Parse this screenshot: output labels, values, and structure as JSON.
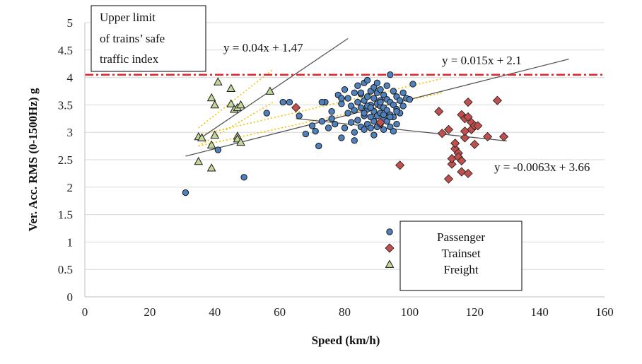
{
  "chart_data": {
    "type": "scatter",
    "title": "",
    "xlabel": "Speed (km/h)",
    "ylabel": "Ver. Acc. RMS  (0-1500Hz) g",
    "xlim": [
      0,
      160
    ],
    "ylim": [
      0,
      5
    ],
    "x_ticks": [
      "0",
      "20",
      "40",
      "60",
      "80",
      "100",
      "120",
      "140",
      "160"
    ],
    "y_ticks": [
      "0",
      "0.5",
      "1",
      "1.5",
      "2",
      "2.5",
      "3",
      "3.5",
      "4",
      "4.5",
      "5"
    ],
    "grid": "horizontal",
    "legend_position": "bottom-right",
    "threshold": {
      "y": 4.05,
      "label": "Upper limit of trains’ safe traffic index",
      "label_lines": [
        "Upper limit",
        "of trains’ safe",
        "traffic index"
      ],
      "color": "#e8242a"
    },
    "series": [
      {
        "name": "Passenger",
        "marker": "circle",
        "color": "#4f81bd",
        "x": [
          31,
          41,
          49,
          56,
          61,
          63,
          66,
          68,
          70,
          71,
          72,
          73,
          74,
          75,
          76,
          76,
          77,
          78,
          79,
          79,
          80,
          80,
          81,
          81,
          82,
          82,
          83,
          83,
          83,
          84,
          84,
          84,
          85,
          85,
          85,
          86,
          86,
          86,
          86,
          87,
          87,
          87,
          87,
          88,
          88,
          88,
          88,
          88,
          89,
          89,
          89,
          89,
          90,
          90,
          90,
          90,
          90,
          91,
          91,
          91,
          91,
          91,
          92,
          92,
          92,
          92,
          93,
          93,
          93,
          93,
          94,
          94,
          94,
          94,
          95,
          95,
          95,
          95,
          96,
          96,
          96,
          97,
          97,
          98,
          98,
          99,
          100,
          101,
          73,
          79,
          83,
          86,
          87,
          89,
          91,
          94,
          96,
          85,
          88,
          92
        ],
        "y": [
          1.9,
          2.68,
          2.18,
          3.35,
          3.55,
          3.55,
          3.3,
          2.97,
          3.12,
          3.02,
          2.75,
          3.2,
          3.55,
          3.08,
          3.25,
          3.38,
          3.15,
          3.68,
          2.9,
          3.52,
          3.08,
          3.78,
          3.35,
          3.62,
          3.18,
          3.48,
          3.0,
          3.4,
          3.72,
          3.22,
          3.55,
          3.85,
          3.1,
          3.45,
          3.7,
          3.05,
          3.3,
          3.58,
          3.9,
          3.15,
          3.42,
          3.65,
          3.95,
          3.08,
          3.28,
          3.5,
          3.75,
          3.45,
          3.2,
          3.38,
          3.62,
          3.82,
          3.1,
          3.3,
          3.52,
          3.72,
          3.9,
          3.15,
          3.35,
          3.58,
          3.78,
          3.48,
          3.05,
          3.25,
          3.45,
          3.68,
          3.2,
          3.4,
          3.6,
          3.85,
          3.1,
          3.32,
          3.55,
          4.05,
          3.02,
          3.28,
          3.5,
          3.75,
          3.15,
          3.42,
          3.65,
          3.35,
          3.58,
          3.48,
          3.72,
          3.62,
          3.6,
          3.88,
          3.55,
          3.62,
          2.85,
          3.35,
          3.48,
          2.95,
          3.55,
          3.28,
          3.38,
          3.72,
          3.45,
          3.32
        ]
      },
      {
        "name": "Trainset",
        "marker": "diamond",
        "color": "#c0504d",
        "x": [
          65,
          91,
          97,
          109,
          110,
          112,
          113,
          113,
          114,
          115,
          116,
          116,
          117,
          117,
          118,
          118,
          119,
          119,
          120,
          120,
          124,
          127,
          129,
          112,
          115,
          118,
          121,
          116,
          114,
          117
        ],
        "y": [
          3.45,
          3.18,
          2.4,
          3.38,
          2.98,
          2.15,
          2.42,
          2.52,
          2.7,
          2.62,
          3.32,
          2.28,
          2.9,
          3.25,
          2.25,
          3.55,
          3.05,
          3.18,
          2.78,
          3.12,
          2.92,
          3.58,
          2.92,
          3.05,
          2.55,
          3.28,
          3.12,
          2.48,
          2.8,
          3.02
        ]
      },
      {
        "name": "Freight",
        "marker": "triangle",
        "color": "#c4d79b",
        "x": [
          35,
          35,
          39,
          39,
          39,
          40,
          40,
          41,
          45,
          45,
          46,
          47,
          47,
          47,
          48,
          48,
          57,
          36
        ],
        "y": [
          2.92,
          2.47,
          3.63,
          2.77,
          2.35,
          3.5,
          2.95,
          3.92,
          3.8,
          3.52,
          3.42,
          3.45,
          2.93,
          2.88,
          3.5,
          2.82,
          3.75,
          2.9
        ]
      }
    ],
    "trendlines": [
      {
        "label": "y = 0.04x + 1.47",
        "slope": 0.04,
        "intercept": 1.47,
        "x_range": [
          35,
          81
        ],
        "color": "#555555"
      },
      {
        "label": "y = 0.015x + 2.1",
        "slope": 0.015,
        "intercept": 2.1,
        "x_range": [
          31,
          149
        ],
        "color": "#555555"
      },
      {
        "label": "y = -0.0063x + 3.66",
        "slope": -0.0063,
        "intercept": 3.66,
        "x_range": [
          65,
          130
        ],
        "color": "#555555"
      }
    ],
    "confidence_bands": [
      {
        "kind": "upper",
        "for": "y = 0.04x + 1.47",
        "x_range": [
          35,
          58
        ],
        "y_range": [
          3.08,
          4.15
        ],
        "color": "#f2c100"
      },
      {
        "kind": "lower",
        "for": "y = 0.04x + 1.47",
        "x_range": [
          35,
          58
        ],
        "y_range": [
          2.75,
          3.55
        ],
        "color": "#f2c100"
      },
      {
        "kind": "upper",
        "for": "y = 0.015x + 2.1",
        "x_range": [
          35,
          110
        ],
        "y_range": [
          2.95,
          3.98
        ],
        "color": "#f2c100"
      },
      {
        "kind": "lower",
        "for": "y = 0.015x + 2.1",
        "x_range": [
          35,
          110
        ],
        "y_range": [
          2.75,
          3.72
        ],
        "color": "#f2c100"
      }
    ]
  }
}
